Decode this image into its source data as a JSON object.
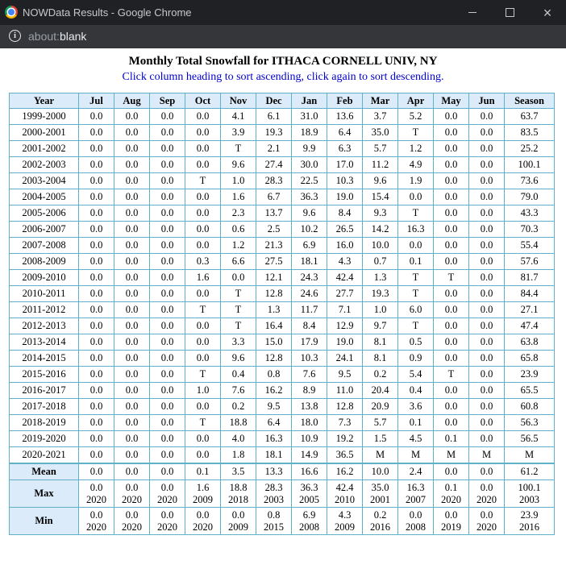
{
  "window": {
    "title": "NOWData Results - Google Chrome",
    "url_scheme": "about:",
    "url_rest": "blank"
  },
  "report": {
    "title": "Monthly Total Snowfall for ITHACA CORNELL UNIV, NY",
    "subtitle": "Click column heading to sort ascending, click again to sort descending."
  },
  "table": {
    "headers": [
      "Year",
      "Jul",
      "Aug",
      "Sep",
      "Oct",
      "Nov",
      "Dec",
      "Jan",
      "Feb",
      "Mar",
      "Apr",
      "May",
      "Jun",
      "Season"
    ],
    "rows": [
      [
        "1999-2000",
        "0.0",
        "0.0",
        "0.0",
        "0.0",
        "4.1",
        "6.1",
        "31.0",
        "13.6",
        "3.7",
        "5.2",
        "0.0",
        "0.0",
        "63.7"
      ],
      [
        "2000-2001",
        "0.0",
        "0.0",
        "0.0",
        "0.0",
        "3.9",
        "19.3",
        "18.9",
        "6.4",
        "35.0",
        "T",
        "0.0",
        "0.0",
        "83.5"
      ],
      [
        "2001-2002",
        "0.0",
        "0.0",
        "0.0",
        "0.0",
        "T",
        "2.1",
        "9.9",
        "6.3",
        "5.7",
        "1.2",
        "0.0",
        "0.0",
        "25.2"
      ],
      [
        "2002-2003",
        "0.0",
        "0.0",
        "0.0",
        "0.0",
        "9.6",
        "27.4",
        "30.0",
        "17.0",
        "11.2",
        "4.9",
        "0.0",
        "0.0",
        "100.1"
      ],
      [
        "2003-2004",
        "0.0",
        "0.0",
        "0.0",
        "T",
        "1.0",
        "28.3",
        "22.5",
        "10.3",
        "9.6",
        "1.9",
        "0.0",
        "0.0",
        "73.6"
      ],
      [
        "2004-2005",
        "0.0",
        "0.0",
        "0.0",
        "0.0",
        "1.6",
        "6.7",
        "36.3",
        "19.0",
        "15.4",
        "0.0",
        "0.0",
        "0.0",
        "79.0"
      ],
      [
        "2005-2006",
        "0.0",
        "0.0",
        "0.0",
        "0.0",
        "2.3",
        "13.7",
        "9.6",
        "8.4",
        "9.3",
        "T",
        "0.0",
        "0.0",
        "43.3"
      ],
      [
        "2006-2007",
        "0.0",
        "0.0",
        "0.0",
        "0.0",
        "0.6",
        "2.5",
        "10.2",
        "26.5",
        "14.2",
        "16.3",
        "0.0",
        "0.0",
        "70.3"
      ],
      [
        "2007-2008",
        "0.0",
        "0.0",
        "0.0",
        "0.0",
        "1.2",
        "21.3",
        "6.9",
        "16.0",
        "10.0",
        "0.0",
        "0.0",
        "0.0",
        "55.4"
      ],
      [
        "2008-2009",
        "0.0",
        "0.0",
        "0.0",
        "0.3",
        "6.6",
        "27.5",
        "18.1",
        "4.3",
        "0.7",
        "0.1",
        "0.0",
        "0.0",
        "57.6"
      ],
      [
        "2009-2010",
        "0.0",
        "0.0",
        "0.0",
        "1.6",
        "0.0",
        "12.1",
        "24.3",
        "42.4",
        "1.3",
        "T",
        "T",
        "0.0",
        "81.7"
      ],
      [
        "2010-2011",
        "0.0",
        "0.0",
        "0.0",
        "0.0",
        "T",
        "12.8",
        "24.6",
        "27.7",
        "19.3",
        "T",
        "0.0",
        "0.0",
        "84.4"
      ],
      [
        "2011-2012",
        "0.0",
        "0.0",
        "0.0",
        "T",
        "T",
        "1.3",
        "11.7",
        "7.1",
        "1.0",
        "6.0",
        "0.0",
        "0.0",
        "27.1"
      ],
      [
        "2012-2013",
        "0.0",
        "0.0",
        "0.0",
        "0.0",
        "T",
        "16.4",
        "8.4",
        "12.9",
        "9.7",
        "T",
        "0.0",
        "0.0",
        "47.4"
      ],
      [
        "2013-2014",
        "0.0",
        "0.0",
        "0.0",
        "0.0",
        "3.3",
        "15.0",
        "17.9",
        "19.0",
        "8.1",
        "0.5",
        "0.0",
        "0.0",
        "63.8"
      ],
      [
        "2014-2015",
        "0.0",
        "0.0",
        "0.0",
        "0.0",
        "9.6",
        "12.8",
        "10.3",
        "24.1",
        "8.1",
        "0.9",
        "0.0",
        "0.0",
        "65.8"
      ],
      [
        "2015-2016",
        "0.0",
        "0.0",
        "0.0",
        "T",
        "0.4",
        "0.8",
        "7.6",
        "9.5",
        "0.2",
        "5.4",
        "T",
        "0.0",
        "23.9"
      ],
      [
        "2016-2017",
        "0.0",
        "0.0",
        "0.0",
        "1.0",
        "7.6",
        "16.2",
        "8.9",
        "11.0",
        "20.4",
        "0.4",
        "0.0",
        "0.0",
        "65.5"
      ],
      [
        "2017-2018",
        "0.0",
        "0.0",
        "0.0",
        "0.0",
        "0.2",
        "9.5",
        "13.8",
        "12.8",
        "20.9",
        "3.6",
        "0.0",
        "0.0",
        "60.8"
      ],
      [
        "2018-2019",
        "0.0",
        "0.0",
        "0.0",
        "T",
        "18.8",
        "6.4",
        "18.0",
        "7.3",
        "5.7",
        "0.1",
        "0.0",
        "0.0",
        "56.3"
      ],
      [
        "2019-2020",
        "0.0",
        "0.0",
        "0.0",
        "0.0",
        "4.0",
        "16.3",
        "10.9",
        "19.2",
        "1.5",
        "4.5",
        "0.1",
        "0.0",
        "56.5"
      ],
      [
        "2020-2021",
        "0.0",
        "0.0",
        "0.0",
        "0.0",
        "1.8",
        "18.1",
        "14.9",
        "36.5",
        "M",
        "M",
        "M",
        "M",
        "M"
      ]
    ],
    "mean": {
      "label": "Mean",
      "values": [
        "0.0",
        "0.0",
        "0.0",
        "0.1",
        "3.5",
        "13.3",
        "16.6",
        "16.2",
        "10.0",
        "2.4",
        "0.0",
        "0.0",
        "61.2"
      ]
    },
    "max": {
      "label": "Max",
      "values": [
        [
          "0.0",
          "2020"
        ],
        [
          "0.0",
          "2020"
        ],
        [
          "0.0",
          "2020"
        ],
        [
          "1.6",
          "2009"
        ],
        [
          "18.8",
          "2018"
        ],
        [
          "28.3",
          "2003"
        ],
        [
          "36.3",
          "2005"
        ],
        [
          "42.4",
          "2010"
        ],
        [
          "35.0",
          "2001"
        ],
        [
          "16.3",
          "2007"
        ],
        [
          "0.1",
          "2020"
        ],
        [
          "0.0",
          "2020"
        ],
        [
          "100.1",
          "2003"
        ]
      ]
    },
    "min": {
      "label": "Min",
      "values": [
        [
          "0.0",
          "2020"
        ],
        [
          "0.0",
          "2020"
        ],
        [
          "0.0",
          "2020"
        ],
        [
          "0.0",
          "2020"
        ],
        [
          "0.0",
          "2009"
        ],
        [
          "0.8",
          "2015"
        ],
        [
          "6.9",
          "2008"
        ],
        [
          "4.3",
          "2009"
        ],
        [
          "0.2",
          "2016"
        ],
        [
          "0.0",
          "2008"
        ],
        [
          "0.0",
          "2019"
        ],
        [
          "0.0",
          "2020"
        ],
        [
          "23.9",
          "2016"
        ]
      ]
    }
  }
}
